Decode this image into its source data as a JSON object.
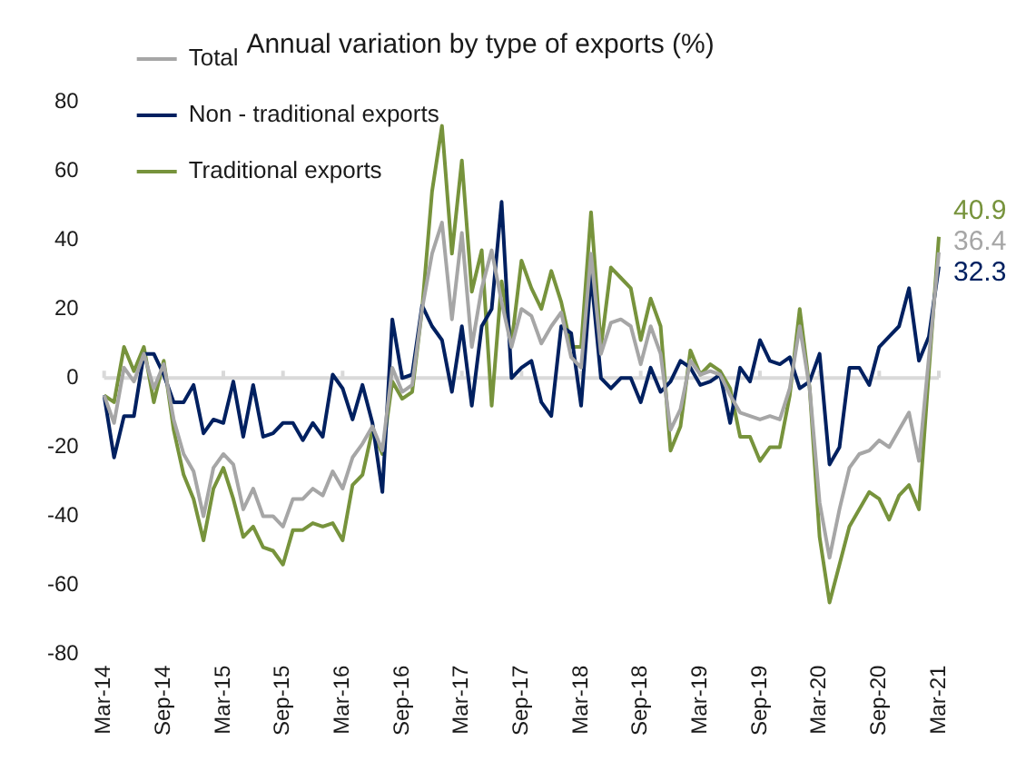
{
  "chart_data": {
    "type": "line",
    "title": "Annual variation by type of exports (%)",
    "categories": [
      "Mar-14",
      null,
      null,
      null,
      null,
      null,
      "Sep-14",
      null,
      null,
      null,
      null,
      null,
      "Mar-15",
      null,
      null,
      null,
      null,
      null,
      "Sep-15",
      null,
      null,
      null,
      null,
      null,
      "Mar-16",
      null,
      null,
      null,
      null,
      null,
      "Sep-16",
      null,
      null,
      null,
      null,
      null,
      "Mar-17",
      null,
      null,
      null,
      null,
      null,
      "Sep-17",
      null,
      null,
      null,
      null,
      null,
      "Mar-18",
      null,
      null,
      null,
      null,
      null,
      "Sep-18",
      null,
      null,
      null,
      null,
      null,
      "Mar-19",
      null,
      null,
      null,
      null,
      null,
      "Sep-19",
      null,
      null,
      null,
      null,
      null,
      "Mar-20",
      null,
      null,
      null,
      null,
      null,
      "Sep-20",
      null,
      null,
      null,
      null,
      null,
      "Mar-21"
    ],
    "series": [
      {
        "name": "Total",
        "color": "#a6a6a6",
        "values": [
          -5,
          -13,
          3,
          -1,
          7,
          -3,
          4,
          -12,
          -22,
          -27,
          -40,
          -26,
          -22,
          -25,
          -38,
          -32,
          -40,
          -40,
          -43,
          -35,
          -35,
          -32,
          -34,
          -27,
          -32,
          -23,
          -19,
          -14,
          -21,
          3,
          -4,
          -2,
          20,
          36,
          45,
          17,
          42,
          9,
          26,
          37,
          22,
          9,
          20,
          18,
          10,
          15,
          19,
          6,
          3,
          36,
          7,
          16,
          17,
          15,
          4,
          15,
          7,
          -15,
          -9,
          5,
          1,
          2,
          1,
          -5,
          -10,
          -11,
          -12,
          -11,
          -12,
          -3,
          15,
          -3,
          -36,
          -52,
          -38,
          -26,
          -22,
          -21,
          -18,
          -20,
          -15,
          -10,
          -24,
          6,
          36.4
        ],
        "value_labels": [
          null,
          null,
          null,
          null,
          null,
          null,
          null,
          null,
          null,
          null,
          null,
          null,
          null,
          null,
          null,
          null,
          null,
          null,
          null,
          null,
          null,
          null,
          null,
          null,
          null,
          null,
          null,
          null,
          null,
          null,
          null,
          null,
          null,
          null,
          null,
          null,
          null,
          null,
          null,
          null,
          null,
          null,
          null,
          null,
          null,
          null,
          null,
          null,
          null,
          null,
          null,
          null,
          null,
          null,
          null,
          null,
          null,
          null,
          null,
          null,
          null,
          null,
          null,
          null,
          null,
          null,
          null,
          null,
          null,
          null,
          null,
          null,
          null,
          null,
          null,
          null,
          null,
          null,
          null,
          null,
          null,
          null,
          null,
          null,
          "36.4"
        ]
      },
      {
        "name": "Non - traditional exports",
        "color": "#002060",
        "values": [
          -5,
          -23,
          -11,
          -11,
          7,
          7,
          1,
          -7,
          -7,
          -2,
          -16,
          -12,
          -13,
          -1,
          -17,
          -2,
          -17,
          -16,
          -13,
          -13,
          -18,
          -13,
          -17,
          1,
          -3,
          -12,
          -2,
          -13,
          -33,
          17,
          0,
          1,
          21,
          15,
          11,
          -4,
          15,
          -8,
          15,
          20,
          51,
          0,
          3,
          5,
          -7,
          -11,
          15,
          13,
          -8,
          30,
          0,
          -3,
          0,
          0,
          -7,
          3,
          -4,
          -1,
          5,
          3,
          -2,
          -1,
          1,
          -13,
          3,
          -1,
          11,
          5,
          4,
          6,
          -3,
          -1,
          7,
          -25,
          -20,
          3,
          3,
          -2,
          9,
          12,
          15,
          26,
          5,
          12,
          32.3
        ],
        "value_labels": [
          null,
          null,
          null,
          null,
          null,
          null,
          null,
          null,
          null,
          null,
          null,
          null,
          null,
          null,
          null,
          null,
          null,
          null,
          null,
          null,
          null,
          null,
          null,
          null,
          null,
          null,
          null,
          null,
          null,
          null,
          null,
          null,
          null,
          null,
          null,
          null,
          null,
          null,
          null,
          null,
          null,
          null,
          null,
          null,
          null,
          null,
          null,
          null,
          null,
          null,
          null,
          null,
          null,
          null,
          null,
          null,
          null,
          null,
          null,
          null,
          null,
          null,
          null,
          null,
          null,
          null,
          null,
          null,
          null,
          null,
          null,
          null,
          null,
          null,
          null,
          null,
          null,
          null,
          null,
          null,
          null,
          null,
          null,
          null,
          "32.3"
        ]
      },
      {
        "name": "Traditional exports",
        "color": "#77933c",
        "values": [
          -5,
          -7,
          9,
          2,
          9,
          -7,
          5,
          -15,
          -28,
          -35,
          -47,
          -32,
          -26,
          -35,
          -46,
          -43,
          -49,
          -50,
          -54,
          -44,
          -44,
          -42,
          -43,
          -42,
          -47,
          -31,
          -28,
          -15,
          -22,
          -1,
          -6,
          -4,
          20,
          54,
          73,
          36,
          63,
          25,
          37,
          -8,
          28,
          10,
          34,
          26,
          20,
          31,
          22,
          9,
          9,
          48,
          9,
          32,
          29,
          26,
          11,
          23,
          15,
          -21,
          -14,
          8,
          1,
          4,
          2,
          -3,
          -17,
          -17,
          -24,
          -20,
          -20,
          -5,
          20,
          -3,
          -46,
          -65,
          -54,
          -43,
          -38,
          -33,
          -35,
          -41,
          -34,
          -31,
          -38,
          2,
          40.9
        ],
        "value_labels": [
          null,
          null,
          null,
          null,
          null,
          null,
          null,
          null,
          null,
          null,
          null,
          null,
          null,
          null,
          null,
          null,
          null,
          null,
          null,
          null,
          null,
          null,
          null,
          null,
          null,
          null,
          null,
          null,
          null,
          null,
          null,
          null,
          null,
          null,
          null,
          null,
          null,
          null,
          null,
          null,
          null,
          null,
          null,
          null,
          null,
          null,
          null,
          null,
          null,
          null,
          null,
          null,
          null,
          null,
          null,
          null,
          null,
          null,
          null,
          null,
          null,
          null,
          null,
          null,
          null,
          null,
          null,
          null,
          null,
          null,
          null,
          null,
          null,
          null,
          null,
          null,
          null,
          null,
          null,
          null,
          null,
          null,
          null,
          null,
          "40.9"
        ]
      }
    ],
    "ylim": [
      -80,
      80
    ],
    "yticks": [
      -80,
      -60,
      -40,
      -20,
      0,
      20,
      40,
      60,
      80
    ],
    "ref_lines": [
      {
        "axis": "y",
        "value": 0,
        "color": "#d9d9d9"
      }
    ],
    "legend": "top left",
    "marker": "none",
    "line_style": "solid"
  }
}
